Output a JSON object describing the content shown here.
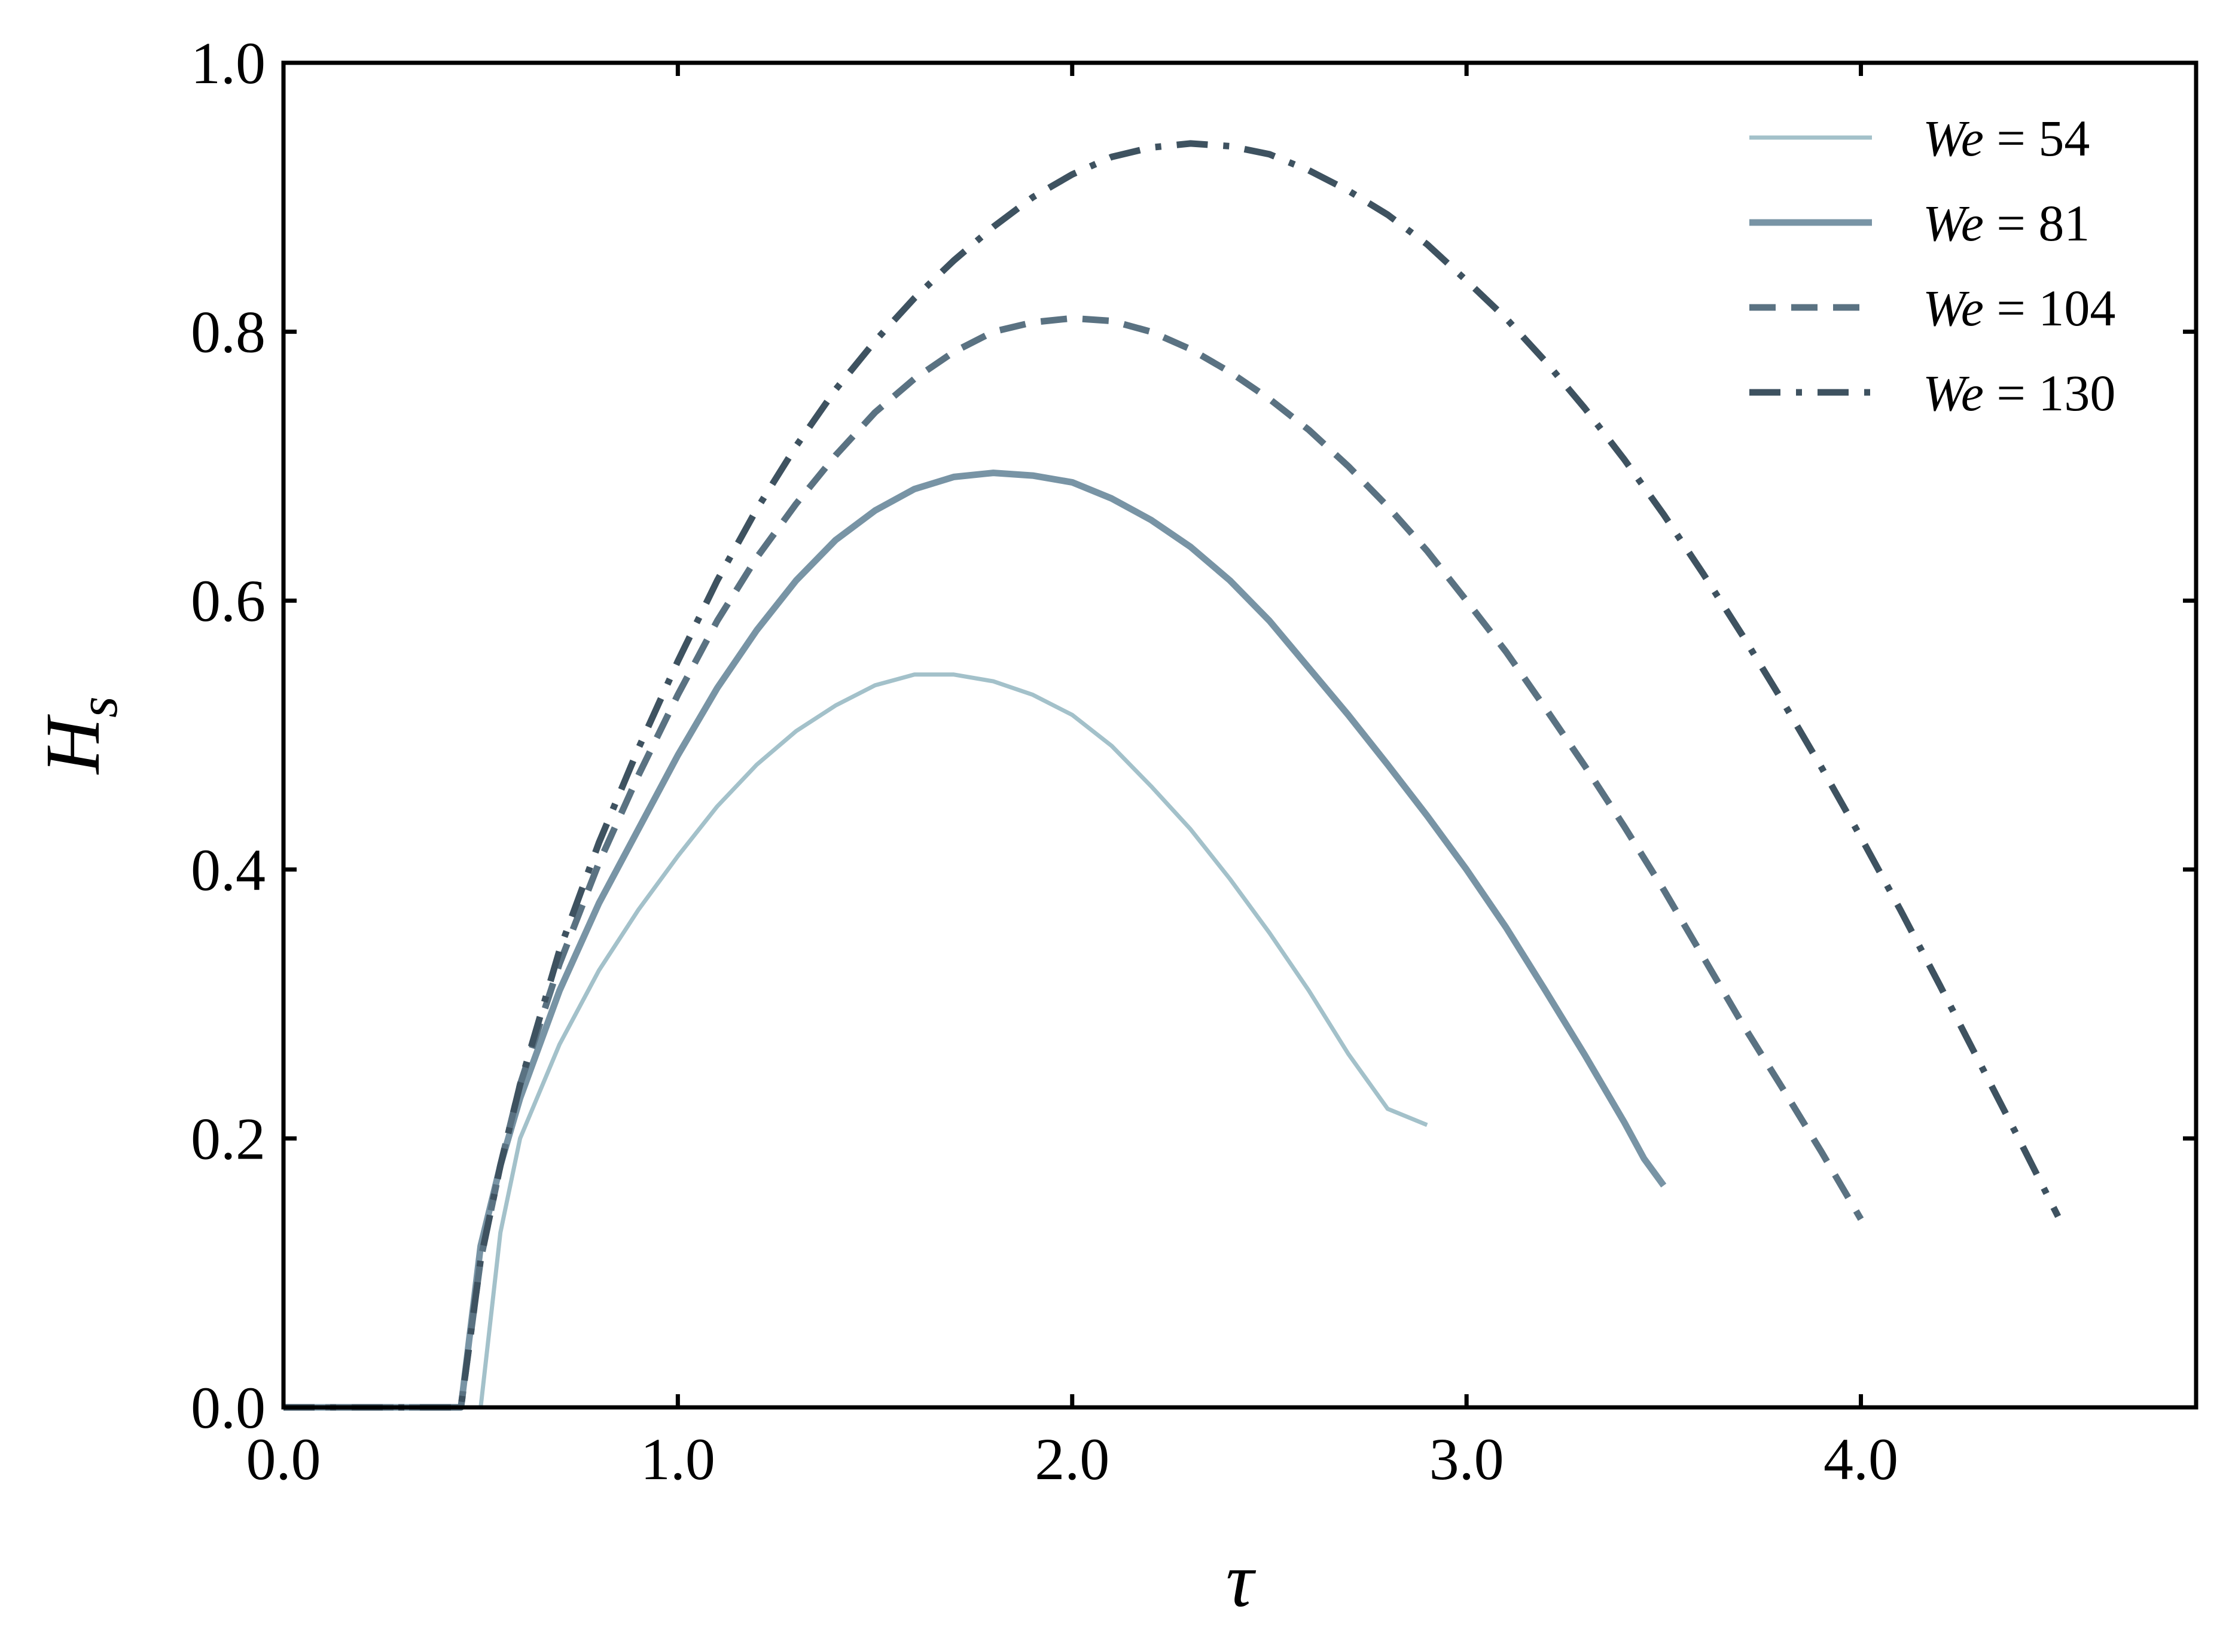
{
  "chart_data": {
    "type": "line",
    "title": "",
    "xlabel": "τ",
    "ylabel": "H",
    "ylabel_subscript": "s",
    "xlim": [
      0.0,
      4.85
    ],
    "ylim": [
      0.0,
      1.0
    ],
    "xticks": [
      0.0,
      1.0,
      2.0,
      3.0,
      4.0
    ],
    "yticks": [
      0.0,
      0.2,
      0.4,
      0.6,
      0.8,
      1.0
    ],
    "xtick_labels": [
      "0.0",
      "1.0",
      "2.0",
      "3.0",
      "4.0"
    ],
    "ytick_labels": [
      "0.0",
      "0.2",
      "0.4",
      "0.6",
      "0.8",
      "1.0"
    ],
    "grid": false,
    "legend_position": "top-right",
    "series": [
      {
        "name": "We = 54",
        "legend_var": "We",
        "legend_value": "54",
        "color": "#a3c1ca",
        "style": "solid",
        "x": [
          0.0,
          0.45,
          0.5,
          0.55,
          0.6,
          0.7,
          0.8,
          0.9,
          1.0,
          1.1,
          1.2,
          1.3,
          1.4,
          1.5,
          1.6,
          1.7,
          1.8,
          1.9,
          2.0,
          2.1,
          2.2,
          2.3,
          2.4,
          2.5,
          2.6,
          2.7,
          2.8,
          2.9
        ],
        "y": [
          0.0,
          0.0,
          0.0,
          0.13,
          0.2,
          0.27,
          0.325,
          0.37,
          0.41,
          0.447,
          0.478,
          0.503,
          0.522,
          0.537,
          0.545,
          0.545,
          0.54,
          0.53,
          0.515,
          0.492,
          0.462,
          0.43,
          0.393,
          0.353,
          0.31,
          0.263,
          0.222,
          0.21
        ]
      },
      {
        "name": "We = 81",
        "legend_var": "We",
        "legend_value": "81",
        "color": "#7894a5",
        "style": "solid",
        "x": [
          0.0,
          0.45,
          0.5,
          0.55,
          0.6,
          0.7,
          0.8,
          0.9,
          1.0,
          1.1,
          1.2,
          1.3,
          1.4,
          1.5,
          1.6,
          1.7,
          1.8,
          1.9,
          2.0,
          2.1,
          2.2,
          2.3,
          2.4,
          2.5,
          2.6,
          2.7,
          2.8,
          2.9,
          3.0,
          3.1,
          3.2,
          3.3,
          3.4,
          3.45,
          3.5
        ],
        "y": [
          0.0,
          0.0,
          0.12,
          0.18,
          0.23,
          0.31,
          0.375,
          0.43,
          0.485,
          0.535,
          0.578,
          0.615,
          0.645,
          0.667,
          0.683,
          0.692,
          0.695,
          0.693,
          0.688,
          0.676,
          0.66,
          0.64,
          0.615,
          0.585,
          0.55,
          0.515,
          0.478,
          0.44,
          0.4,
          0.357,
          0.31,
          0.262,
          0.212,
          0.185,
          0.165
        ]
      },
      {
        "name": "We = 104",
        "legend_var": "We",
        "legend_value": "104",
        "color": "#5a7282",
        "style": "dashed",
        "x": [
          0.0,
          0.45,
          0.5,
          0.55,
          0.6,
          0.7,
          0.8,
          0.9,
          1.0,
          1.1,
          1.2,
          1.3,
          1.4,
          1.5,
          1.6,
          1.7,
          1.8,
          1.9,
          2.0,
          2.1,
          2.2,
          2.3,
          2.4,
          2.5,
          2.6,
          2.7,
          2.8,
          2.9,
          3.0,
          3.1,
          3.2,
          3.3,
          3.4,
          3.5,
          3.6,
          3.7,
          3.8,
          3.9,
          4.0
        ],
        "y": [
          0.0,
          0.0,
          0.11,
          0.18,
          0.24,
          0.33,
          0.405,
          0.47,
          0.53,
          0.585,
          0.632,
          0.672,
          0.708,
          0.74,
          0.765,
          0.785,
          0.8,
          0.807,
          0.81,
          0.808,
          0.8,
          0.787,
          0.77,
          0.75,
          0.727,
          0.7,
          0.67,
          0.637,
          0.6,
          0.562,
          0.52,
          0.477,
          0.432,
          0.385,
          0.335,
          0.285,
          0.238,
          0.19,
          0.14
        ]
      },
      {
        "name": "We = 130",
        "legend_var": "We",
        "legend_value": "130",
        "color": "#3e5260",
        "style": "dashdot",
        "x": [
          0.0,
          0.45,
          0.5,
          0.55,
          0.6,
          0.7,
          0.8,
          0.9,
          1.0,
          1.1,
          1.2,
          1.3,
          1.4,
          1.5,
          1.6,
          1.7,
          1.8,
          1.9,
          2.0,
          2.1,
          2.2,
          2.3,
          2.4,
          2.5,
          2.6,
          2.7,
          2.8,
          2.9,
          3.0,
          3.1,
          3.2,
          3.3,
          3.4,
          3.5,
          3.6,
          3.7,
          3.8,
          3.9,
          4.0,
          4.1,
          4.2,
          4.3,
          4.4,
          4.5
        ],
        "y": [
          0.0,
          0.0,
          0.11,
          0.18,
          0.24,
          0.34,
          0.42,
          0.49,
          0.555,
          0.615,
          0.668,
          0.715,
          0.757,
          0.793,
          0.825,
          0.853,
          0.878,
          0.9,
          0.917,
          0.93,
          0.937,
          0.94,
          0.938,
          0.932,
          0.92,
          0.905,
          0.887,
          0.865,
          0.838,
          0.81,
          0.778,
          0.743,
          0.705,
          0.664,
          0.62,
          0.574,
          0.526,
          0.476,
          0.424,
          0.37,
          0.314,
          0.257,
          0.2,
          0.142
        ]
      }
    ]
  }
}
